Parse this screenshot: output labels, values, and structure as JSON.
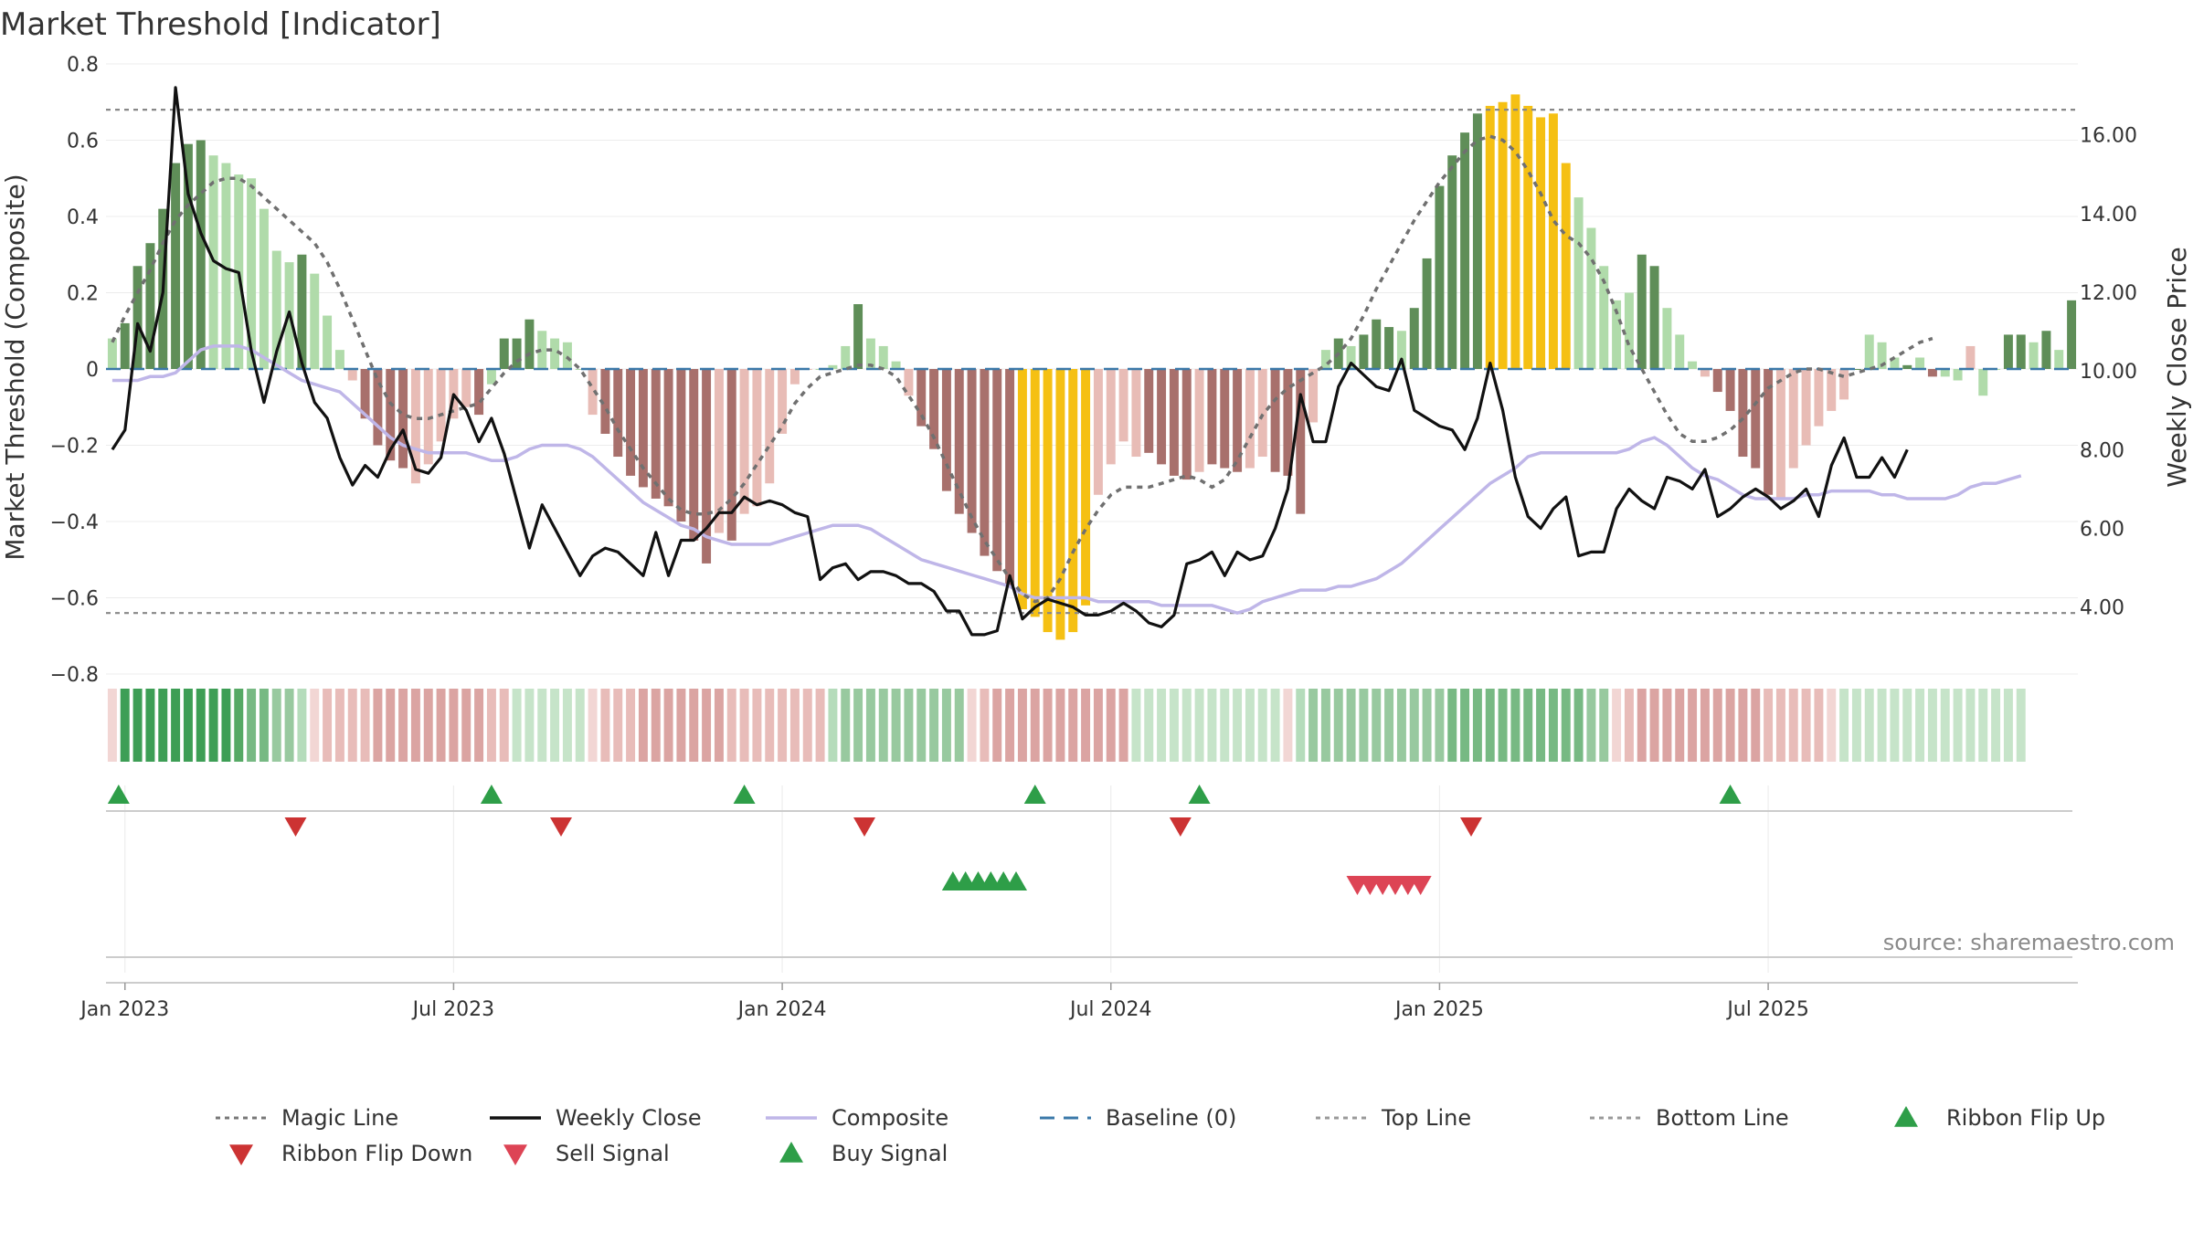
{
  "title": "Market Threshold [Indicator]",
  "source": "source: sharemaestro.com",
  "chart_data": {
    "type": "bar",
    "x_start_week": 0,
    "x_ticks": [
      "Jan 2023",
      "Jul 2023",
      "Jan 2024",
      "Jul 2024",
      "Jan 2025",
      "Jul 2025"
    ],
    "x_tick_weeks": [
      1,
      27,
      53,
      79,
      105,
      131
    ],
    "ylabel_left": "Market Threshold (Composite)",
    "ylabel_right": "Weekly Close Price",
    "ylim_left": [
      -0.8,
      0.8
    ],
    "yticks_left": [
      "0.8",
      "0.6",
      "0.4",
      "0.2",
      "0",
      "−0.2",
      "−0.4",
      "−0.6",
      "−0.8"
    ],
    "yticks_left_values": [
      0.8,
      0.6,
      0.4,
      0.2,
      0,
      -0.2,
      -0.4,
      -0.6,
      -0.8
    ],
    "ylim_right": [
      2.3,
      17.8
    ],
    "yticks_right": [
      "16.00",
      "14.00",
      "12.00",
      "10.00",
      "8.00",
      "6.00",
      "4.00"
    ],
    "yticks_right_values": [
      16,
      14,
      12,
      10,
      8,
      6,
      4
    ],
    "top_line": 0.68,
    "bottom_line": -0.64,
    "composite": [
      0.08,
      0.12,
      0.27,
      0.33,
      0.42,
      0.54,
      0.59,
      0.6,
      0.56,
      0.54,
      0.51,
      0.5,
      0.42,
      0.31,
      0.28,
      0.3,
      0.25,
      0.14,
      0.05,
      -0.03,
      -0.13,
      -0.2,
      -0.24,
      -0.26,
      -0.3,
      -0.25,
      -0.19,
      -0.13,
      -0.1,
      -0.12,
      -0.04,
      0.08,
      0.08,
      0.13,
      0.1,
      0.08,
      0.07,
      0,
      -0.12,
      -0.17,
      -0.23,
      -0.28,
      -0.31,
      -0.34,
      -0.36,
      -0.4,
      -0.45,
      -0.51,
      -0.43,
      -0.45,
      -0.38,
      -0.36,
      -0.3,
      -0.17,
      -0.04,
      0,
      0,
      0.01,
      0.06,
      0.17,
      0.08,
      0.06,
      0.02,
      -0.07,
      -0.15,
      -0.21,
      -0.32,
      -0.38,
      -0.43,
      -0.49,
      -0.53,
      -0.57,
      -0.63,
      -0.65,
      -0.69,
      -0.71,
      -0.69,
      -0.62,
      -0.33,
      -0.25,
      -0.19,
      -0.23,
      -0.22,
      -0.25,
      -0.28,
      -0.29,
      -0.27,
      -0.25,
      -0.26,
      -0.27,
      -0.26,
      -0.23,
      -0.27,
      -0.28,
      -0.38,
      -0.14,
      0.05,
      0.08,
      0.06,
      0.09,
      0.13,
      0.11,
      0.1,
      0.16,
      0.29,
      0.48,
      0.56,
      0.62,
      0.67,
      0.69,
      0.7,
      0.72,
      0.69,
      0.66,
      0.67,
      0.54,
      0.45,
      0.37,
      0.27,
      0.18,
      0.2,
      0.3,
      0.27,
      0.16,
      0.09,
      0.02,
      -0.02,
      -0.06,
      -0.11,
      -0.23,
      -0.26,
      -0.33,
      -0.34,
      -0.26,
      -0.2,
      -0.15,
      -0.11,
      -0.08,
      0,
      0.09,
      0.07,
      0.03,
      0.01,
      0.03,
      -0.02,
      -0.02,
      -0.03,
      0.06,
      -0.07,
      0,
      0.09,
      0.09,
      0.07,
      0.1,
      0.05,
      0.18
    ],
    "bar_colors": [
      "#b0dbaa",
      "#5f8e58",
      "#5f8e58",
      "#5f8e58",
      "#5f8e58",
      "#5f8e58",
      "#5f8e58",
      "#5f8e58",
      "#b0dbaa",
      "#b0dbaa",
      "#b0dbaa",
      "#b0dbaa",
      "#b0dbaa",
      "#b0dbaa",
      "#b0dbaa",
      "#5f8e58",
      "#b0dbaa",
      "#b0dbaa",
      "#b0dbaa",
      "#e8bcb6",
      "#a8706c",
      "#a8706c",
      "#a8706c",
      "#a8706c",
      "#e8bcb6",
      "#e8bcb6",
      "#e8bcb6",
      "#e8bcb6",
      "#e8bcb6",
      "#a8706c",
      "#b0dbaa",
      "#5f8e58",
      "#5f8e58",
      "#5f8e58",
      "#b0dbaa",
      "#b0dbaa",
      "#b0dbaa",
      "#b0dbaa",
      "#e8bcb6",
      "#a8706c",
      "#a8706c",
      "#a8706c",
      "#a8706c",
      "#a8706c",
      "#a8706c",
      "#a8706c",
      "#a8706c",
      "#a8706c",
      "#e8bcb6",
      "#a8706c",
      "#e8bcb6",
      "#e8bcb6",
      "#e8bcb6",
      "#e8bcb6",
      "#e8bcb6",
      "#e8bcb6",
      "#b0dbaa",
      "#b0dbaa",
      "#b0dbaa",
      "#5f8e58",
      "#b0dbaa",
      "#b0dbaa",
      "#b0dbaa",
      "#e8bcb6",
      "#a8706c",
      "#a8706c",
      "#a8706c",
      "#a8706c",
      "#a8706c",
      "#a8706c",
      "#a8706c",
      "#a8706c",
      "#f5c013",
      "#f5c013",
      "#f5c013",
      "#f5c013",
      "#f5c013",
      "#f5c013",
      "#e8bcb6",
      "#e8bcb6",
      "#e8bcb6",
      "#e8bcb6",
      "#a8706c",
      "#a8706c",
      "#a8706c",
      "#a8706c",
      "#e8bcb6",
      "#a8706c",
      "#a8706c",
      "#a8706c",
      "#e8bcb6",
      "#e8bcb6",
      "#a8706c",
      "#a8706c",
      "#a8706c",
      "#e8bcb6",
      "#b0dbaa",
      "#5f8e58",
      "#b0dbaa",
      "#5f8e58",
      "#5f8e58",
      "#5f8e58",
      "#b0dbaa",
      "#5f8e58",
      "#5f8e58",
      "#5f8e58",
      "#5f8e58",
      "#5f8e58",
      "#5f8e58",
      "#f5c013",
      "#f5c013",
      "#f5c013",
      "#f5c013",
      "#f5c013",
      "#f5c013",
      "#f5c013",
      "#b0dbaa",
      "#b0dbaa",
      "#b0dbaa",
      "#b0dbaa",
      "#b0dbaa",
      "#5f8e58",
      "#5f8e58",
      "#b0dbaa",
      "#b0dbaa",
      "#b0dbaa",
      "#e8bcb6",
      "#a8706c",
      "#a8706c",
      "#a8706c",
      "#a8706c",
      "#a8706c",
      "#e8bcb6",
      "#e8bcb6",
      "#e8bcb6",
      "#e8bcb6",
      "#e8bcb6",
      "#e8bcb6",
      "#5f8e58",
      "#b0dbaa",
      "#b0dbaa",
      "#b0dbaa",
      "#5f8e58",
      "#b0dbaa",
      "#a8706c",
      "#b0dbaa",
      "#b0dbaa",
      "#e8bcb6",
      "#b0dbaa",
      "#b0dbaa",
      "#5f8e58",
      "#5f8e58",
      "#b0dbaa",
      "#5f8e58",
      "#b0dbaa",
      "#5f8e58"
    ],
    "magic_line": [
      0.07,
      0.14,
      0.2,
      0.26,
      0.33,
      0.39,
      0.43,
      0.46,
      0.49,
      0.5,
      0.5,
      0.48,
      0.45,
      0.42,
      0.39,
      0.36,
      0.33,
      0.28,
      0.21,
      0.13,
      0.05,
      -0.03,
      -0.09,
      -0.12,
      -0.13,
      -0.13,
      -0.12,
      -0.11,
      -0.1,
      -0.09,
      -0.05,
      -0.01,
      0.02,
      0.04,
      0.05,
      0.05,
      0.03,
      0,
      -0.05,
      -0.1,
      -0.16,
      -0.21,
      -0.26,
      -0.3,
      -0.34,
      -0.37,
      -0.38,
      -0.38,
      -0.37,
      -0.34,
      -0.3,
      -0.25,
      -0.2,
      -0.15,
      -0.09,
      -0.05,
      -0.02,
      -0.01,
      0,
      0.01,
      0.01,
      0,
      -0.02,
      -0.07,
      -0.12,
      -0.18,
      -0.25,
      -0.32,
      -0.39,
      -0.45,
      -0.5,
      -0.55,
      -0.59,
      -0.61,
      -0.6,
      -0.55,
      -0.48,
      -0.42,
      -0.37,
      -0.33,
      -0.31,
      -0.31,
      -0.31,
      -0.3,
      -0.29,
      -0.28,
      -0.29,
      -0.31,
      -0.29,
      -0.24,
      -0.18,
      -0.12,
      -0.08,
      -0.05,
      -0.03,
      -0.01,
      0.01,
      0.04,
      0.08,
      0.14,
      0.21,
      0.27,
      0.33,
      0.39,
      0.44,
      0.49,
      0.53,
      0.57,
      0.6,
      0.61,
      0.6,
      0.57,
      0.52,
      0.46,
      0.39,
      0.35,
      0.33,
      0.29,
      0.23,
      0.15,
      0.06,
      0,
      -0.06,
      -0.12,
      -0.17,
      -0.19,
      -0.19,
      -0.18,
      -0.16,
      -0.13,
      -0.09,
      -0.05,
      -0.03,
      -0.01,
      0,
      0,
      -0.01,
      -0.02,
      -0.01,
      0,
      0.01,
      0.03,
      0.05,
      0.07,
      0.08
    ],
    "composite_line": [
      -0.03,
      -0.03,
      -0.03,
      -0.02,
      -0.02,
      -0.01,
      0.02,
      0.05,
      0.06,
      0.06,
      0.06,
      0.05,
      0.03,
      0.01,
      -0.01,
      -0.03,
      -0.04,
      -0.05,
      -0.06,
      -0.09,
      -0.12,
      -0.15,
      -0.18,
      -0.2,
      -0.21,
      -0.22,
      -0.22,
      -0.22,
      -0.22,
      -0.23,
      -0.24,
      -0.24,
      -0.23,
      -0.21,
      -0.2,
      -0.2,
      -0.2,
      -0.21,
      -0.23,
      -0.26,
      -0.29,
      -0.32,
      -0.35,
      -0.37,
      -0.39,
      -0.41,
      -0.42,
      -0.44,
      -0.45,
      -0.46,
      -0.46,
      -0.46,
      -0.46,
      -0.45,
      -0.44,
      -0.43,
      -0.42,
      -0.41,
      -0.41,
      -0.41,
      -0.42,
      -0.44,
      -0.46,
      -0.48,
      -0.5,
      -0.51,
      -0.52,
      -0.53,
      -0.54,
      -0.55,
      -0.56,
      -0.57,
      -0.59,
      -0.6,
      -0.6,
      -0.6,
      -0.6,
      -0.6,
      -0.61,
      -0.61,
      -0.61,
      -0.61,
      -0.61,
      -0.62,
      -0.62,
      -0.62,
      -0.62,
      -0.62,
      -0.63,
      -0.64,
      -0.63,
      -0.61,
      -0.6,
      -0.59,
      -0.58,
      -0.58,
      -0.58,
      -0.57,
      -0.57,
      -0.56,
      -0.55,
      -0.53,
      -0.51,
      -0.48,
      -0.45,
      -0.42,
      -0.39,
      -0.36,
      -0.33,
      -0.3,
      -0.28,
      -0.26,
      -0.23,
      -0.22,
      -0.22,
      -0.22,
      -0.22,
      -0.22,
      -0.22,
      -0.22,
      -0.21,
      -0.19,
      -0.18,
      -0.2,
      -0.23,
      -0.26,
      -0.28,
      -0.29,
      -0.31,
      -0.33,
      -0.34,
      -0.34,
      -0.34,
      -0.34,
      -0.33,
      -0.33,
      -0.32,
      -0.32,
      -0.32,
      -0.32,
      -0.33,
      -0.33,
      -0.34,
      -0.34,
      -0.34,
      -0.34,
      -0.33,
      -0.31,
      -0.3,
      -0.3,
      -0.29,
      -0.28
    ],
    "weekly_close": [
      8.0,
      8.5,
      11.2,
      10.5,
      12,
      17.2,
      14.5,
      13.5,
      12.8,
      12.6,
      12.5,
      10.5,
      9.2,
      10.5,
      11.5,
      10.2,
      9.2,
      8.8,
      7.8,
      7.1,
      7.6,
      7.3,
      8.0,
      8.5,
      7.5,
      7.4,
      7.8,
      9.4,
      9.0,
      8.2,
      8.8,
      7.9,
      6.7,
      5.5,
      6.6,
      6.0,
      5.4,
      4.8,
      5.3,
      5.5,
      5.4,
      5.1,
      4.8,
      5.9,
      4.8,
      5.7,
      5.7,
      6.0,
      6.4,
      6.4,
      6.8,
      6.6,
      6.7,
      6.6,
      6.4,
      6.3,
      4.7,
      5.0,
      5.1,
      4.7,
      4.9,
      4.9,
      4.8,
      4.6,
      4.6,
      4.4,
      3.9,
      3.9,
      3.3,
      3.3,
      3.4,
      4.8,
      3.7,
      4.0,
      4.2,
      4.1,
      4.0,
      3.8,
      3.8,
      3.9,
      4.1,
      3.9,
      3.6,
      3.5,
      3.8,
      5.1,
      5.2,
      5.4,
      4.8,
      5.4,
      5.2,
      5.3,
      6.0,
      7.0,
      9.4,
      8.2,
      8.2,
      9.6,
      10.2,
      9.9,
      9.6,
      9.5,
      10.3,
      9.0,
      8.8,
      8.6,
      8.5,
      8.0,
      8.8,
      10.2,
      9.0,
      7.3,
      6.3,
      6.0,
      6.5,
      6.8,
      5.3,
      5.4,
      5.4,
      6.5,
      7.0,
      6.7,
      6.5,
      7.3,
      7.2,
      7.0,
      7.5,
      6.3,
      6.5,
      6.8,
      7.0,
      6.8,
      6.5,
      6.7,
      7.0,
      6.3,
      7.6,
      8.3,
      7.3,
      7.3,
      7.8,
      7.3,
      8.0
    ],
    "ribbon_colors": [
      "#f2d6d4",
      "#3d9e55",
      "#3d9e55",
      "#3d9e55",
      "#3d9e55",
      "#3d9e55",
      "#3d9e55",
      "#3d9e55",
      "#3d9e55",
      "#3d9e55",
      "#56a965",
      "#77b983",
      "#77b983",
      "#98c99f",
      "#98c99f",
      "#b5dcbb",
      "#f2d6d4",
      "#e8bcb9",
      "#e8bcb9",
      "#e8bcb9",
      "#e8bcb9",
      "#dba4a2",
      "#dba4a2",
      "#dba4a2",
      "#dba4a2",
      "#dba4a2",
      "#dba4a2",
      "#dba4a2",
      "#dba4a2",
      "#dba4a2",
      "#e8bcb9",
      "#e8bcb9",
      "#c6e4c9",
      "#c6e4c9",
      "#c6e4c9",
      "#c6e4c9",
      "#c6e4c9",
      "#c6e4c9",
      "#f2d6d4",
      "#e8bcb9",
      "#e8bcb9",
      "#e8bcb9",
      "#dba4a2",
      "#dba4a2",
      "#dba4a2",
      "#dba4a2",
      "#dba4a2",
      "#dba4a2",
      "#dba4a2",
      "#e8bcb9",
      "#e8bcb9",
      "#e8bcb9",
      "#e8bcb9",
      "#e8bcb9",
      "#e8bcb9",
      "#e8bcb9",
      "#e8bcb9",
      "#b5dcbb",
      "#98c99f",
      "#98c99f",
      "#98c99f",
      "#98c99f",
      "#98c99f",
      "#98c99f",
      "#98c99f",
      "#98c99f",
      "#98c99f",
      "#98c99f",
      "#f2d6d4",
      "#e8bcb9",
      "#dba4a2",
      "#dba4a2",
      "#dba4a2",
      "#dba4a2",
      "#dba4a2",
      "#dba4a2",
      "#dba4a2",
      "#dba4a2",
      "#dba4a2",
      "#dba4a2",
      "#dba4a2",
      "#c6e4c9",
      "#c6e4c9",
      "#c6e4c9",
      "#c6e4c9",
      "#c6e4c9",
      "#c6e4c9",
      "#c6e4c9",
      "#c6e4c9",
      "#c6e4c9",
      "#c6e4c9",
      "#c6e4c9",
      "#c6e4c9",
      "#f2d6d4",
      "#b5dcbb",
      "#98c99f",
      "#98c99f",
      "#98c99f",
      "#98c99f",
      "#98c99f",
      "#98c99f",
      "#98c99f",
      "#98c99f",
      "#98c99f",
      "#98c99f",
      "#98c99f",
      "#77b983",
      "#77b983",
      "#77b983",
      "#77b983",
      "#77b983",
      "#77b983",
      "#77b983",
      "#77b983",
      "#77b983",
      "#77b983",
      "#77b983",
      "#98c99f",
      "#98c99f",
      "#f2d6d4",
      "#e8bcb9",
      "#dba4a2",
      "#dba4a2",
      "#dba4a2",
      "#dba4a2",
      "#dba4a2",
      "#dba4a2",
      "#dba4a2",
      "#dba4a2",
      "#dba4a2",
      "#dba4a2",
      "#e8bcb9",
      "#e8bcb9",
      "#e8bcb9",
      "#e8bcb9",
      "#e8bcb9",
      "#f2d6d4",
      "#c6e4c9",
      "#c6e4c9",
      "#c6e4c9",
      "#c6e4c9",
      "#c6e4c9",
      "#c6e4c9",
      "#c6e4c9",
      "#c6e4c9",
      "#c6e4c9",
      "#c6e4c9",
      "#c6e4c9",
      "#c6e4c9",
      "#c6e4c9",
      "#c6e4c9",
      "#c6e4c9"
    ],
    "ribbon_flip_up_weeks": [
      0.5,
      30,
      50,
      73,
      86,
      128
    ],
    "ribbon_flip_down_weeks": [
      14.5,
      35.5,
      59.5,
      84.5,
      107.5
    ],
    "buy_signal_weeks": [
      66.5,
      67.5,
      68.5,
      69.5,
      70.5,
      71.5
    ],
    "sell_signal_weeks": [
      98.5,
      99.5,
      100.5,
      101.5,
      102.5,
      103.5
    ],
    "legend": [
      {
        "label": "Magic Line",
        "kind": "dotted",
        "color": "#777777"
      },
      {
        "label": "Weekly Close",
        "kind": "solid",
        "color": "#111111"
      },
      {
        "label": "Composite",
        "kind": "solid",
        "color": "#bfb6e8"
      },
      {
        "label": "Baseline (0)",
        "kind": "dashed",
        "color": "#3a78a8"
      },
      {
        "label": "Top Line",
        "kind": "dotted",
        "color": "#999999"
      },
      {
        "label": "Bottom Line",
        "kind": "dotted",
        "color": "#999999"
      },
      {
        "label": "Ribbon Flip Up",
        "kind": "tri-up",
        "color": "#2e9e48"
      },
      {
        "label": "Ribbon Flip Down",
        "kind": "tri-down",
        "color": "#cc3333"
      },
      {
        "label": "Sell Signal",
        "kind": "tri-down",
        "color": "#dd4455"
      },
      {
        "label": "Buy Signal",
        "kind": "tri-up",
        "color": "#2e9e48"
      }
    ]
  }
}
